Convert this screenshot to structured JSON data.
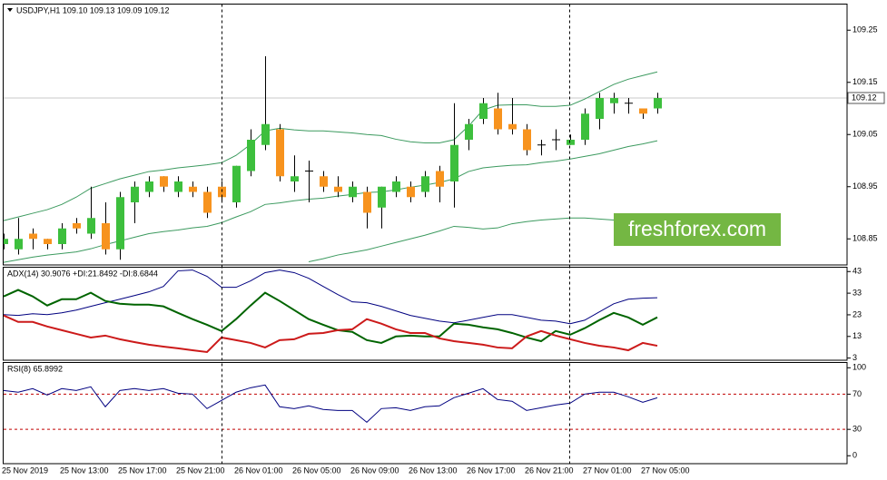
{
  "chart_data": [
    {
      "type": "candlestick",
      "title": "USDJPY,H1  109.10 109.13 109.09 109.12",
      "categories": [
        "25 Nov 2019",
        null,
        null,
        null,
        "25 Nov 13:00",
        null,
        null,
        null,
        "25 Nov 17:00",
        null,
        null,
        null,
        "25 Nov 21:00",
        null,
        null,
        null,
        "26 Nov 01:00",
        null,
        null,
        null,
        "26 Nov 05:00",
        null,
        null,
        null,
        "26 Nov 09:00",
        null,
        null,
        null,
        "26 Nov 13:00",
        null,
        null,
        null,
        "26 Nov 17:00",
        null,
        null,
        null,
        "26 Nov 21:00",
        null,
        null,
        null,
        "27 Nov 01:00",
        null,
        null,
        null,
        "27 Nov 05:00",
        null
      ],
      "open": [
        108.84,
        108.83,
        108.86,
        108.85,
        108.84,
        108.88,
        108.86,
        108.88,
        108.83,
        108.92,
        108.94,
        108.97,
        108.94,
        108.95,
        108.94,
        108.95,
        108.92,
        108.98,
        109.03,
        109.06,
        108.96,
        108.98,
        108.97,
        108.95,
        108.93,
        108.94,
        108.91,
        108.94,
        108.95,
        108.94,
        108.98,
        108.96,
        109.04,
        109.08,
        109.1,
        109.07,
        109.06,
        109.03,
        109.04,
        109.03,
        109.04,
        109.08,
        109.11,
        109.11,
        109.1,
        109.1
      ],
      "high": [
        108.86,
        108.89,
        108.87,
        108.85,
        108.88,
        108.89,
        108.95,
        108.92,
        108.94,
        108.96,
        108.97,
        108.97,
        108.97,
        108.96,
        108.95,
        108.96,
        108.99,
        109.06,
        109.2,
        109.07,
        109.01,
        109.0,
        108.98,
        108.97,
        108.96,
        108.95,
        108.95,
        108.97,
        108.96,
        108.98,
        108.99,
        109.11,
        109.08,
        109.12,
        109.13,
        109.12,
        109.07,
        109.04,
        109.06,
        109.05,
        109.1,
        109.13,
        109.13,
        109.12,
        109.1,
        109.13
      ],
      "low": [
        108.83,
        108.82,
        108.83,
        108.83,
        108.83,
        108.86,
        108.85,
        108.82,
        108.81,
        108.88,
        108.93,
        108.94,
        108.93,
        108.93,
        108.89,
        108.92,
        108.91,
        108.97,
        109.02,
        108.96,
        108.94,
        108.92,
        108.94,
        108.93,
        108.92,
        108.87,
        108.87,
        108.93,
        108.92,
        108.93,
        108.92,
        108.91,
        109.02,
        109.07,
        109.05,
        109.05,
        109.01,
        109.01,
        109.02,
        109.03,
        109.03,
        109.06,
        109.09,
        109.09,
        109.08,
        109.09
      ],
      "close": [
        108.85,
        108.85,
        108.85,
        108.84,
        108.87,
        108.87,
        108.89,
        108.83,
        108.93,
        108.95,
        108.96,
        108.95,
        108.96,
        108.94,
        108.9,
        108.93,
        108.99,
        109.04,
        109.07,
        108.97,
        108.97,
        108.98,
        108.95,
        108.94,
        108.95,
        108.9,
        108.95,
        108.96,
        108.93,
        108.97,
        108.95,
        109.03,
        109.07,
        109.11,
        109.06,
        109.06,
        109.02,
        109.03,
        109.04,
        109.04,
        109.09,
        109.12,
        109.12,
        109.11,
        109.09,
        109.12
      ],
      "up_color": "#3dbf3d",
      "down_color": "#f7931e",
      "doji_color": "#000000",
      "overlays": [
        {
          "color": "#3c9a5f",
          "values": [
            108.885,
            108.892,
            108.899,
            108.906,
            108.916,
            108.93,
            108.947,
            108.956,
            108.965,
            108.972,
            108.979,
            108.982,
            108.986,
            108.989,
            108.992,
            108.996,
            109.01,
            109.031,
            109.057,
            109.062,
            109.059,
            109.057,
            109.057,
            109.055,
            109.053,
            109.05,
            109.048,
            109.041,
            109.036,
            109.034,
            109.034,
            109.04,
            109.066,
            109.097,
            109.106,
            109.107,
            109.107,
            109.104,
            109.104,
            109.106,
            109.118,
            109.132,
            109.146,
            109.156,
            109.163,
            109.17
          ]
        },
        {
          "color": "#3c9a5f",
          "values": [
            108.805,
            108.81,
            108.815,
            108.819,
            108.822,
            108.825,
            108.831,
            108.839,
            108.846,
            108.853,
            108.86,
            108.864,
            108.867,
            108.871,
            108.874,
            108.881,
            108.892,
            108.902,
            108.916,
            108.919,
            108.923,
            108.926,
            108.928,
            108.932,
            108.935,
            108.939,
            108.94,
            108.944,
            108.949,
            108.953,
            108.958,
            108.965,
            108.979,
            108.986,
            108.989,
            108.991,
            108.992,
            108.996,
            108.999,
            109.003,
            109.008,
            109.013,
            109.02,
            109.027,
            109.032,
            109.038
          ]
        },
        {
          "color": "#3c9a5f",
          "values": [
            null,
            null,
            null,
            null,
            null,
            null,
            null,
            null,
            null,
            null,
            null,
            null,
            null,
            null,
            null,
            null,
            null,
            null,
            null,
            null,
            null,
            108.806,
            108.812,
            108.819,
            108.824,
            108.829,
            108.836,
            108.843,
            108.85,
            108.857,
            108.865,
            108.874,
            108.872,
            108.869,
            108.871,
            108.879,
            108.883,
            108.886,
            108.888,
            108.89,
            108.89,
            108.888,
            108.886,
            108.885,
            108.888,
            108.892
          ]
        }
      ],
      "last_price": 109.12,
      "watermark": "freshforex.com",
      "ylim": [
        108.8,
        109.3
      ],
      "yticks": [
        109.25,
        109.15,
        109.05,
        108.95,
        108.85
      ]
    },
    {
      "type": "line",
      "title": "ADX(14) 30.9076 +DI:21.8492 -DI:8.6844",
      "series": [
        {
          "color": "#000080",
          "line_width": 1,
          "values": [
            23.1,
            22.7,
            23.5,
            23.1,
            23.9,
            25.2,
            26.9,
            28.6,
            30.2,
            31.9,
            33.6,
            36.1,
            43.3,
            43.7,
            40.8,
            35.7,
            35.7,
            38.7,
            42.5,
            43.7,
            42.5,
            39.9,
            36.1,
            32.4,
            29.0,
            28.6,
            26.9,
            24.8,
            22.7,
            21.4,
            20.1,
            19.3,
            20.5,
            21.8,
            23.1,
            23.1,
            21.8,
            20.5,
            20.1,
            18.9,
            20.5,
            24.3,
            28.1,
            30.2,
            30.7,
            30.9076
          ]
        },
        {
          "color": "#006400",
          "line_width": 2,
          "values": [
            31.5,
            34.5,
            31.5,
            27.3,
            30.2,
            30.2,
            33.2,
            29.4,
            28.1,
            27.7,
            27.7,
            26.9,
            23.9,
            21.0,
            18.4,
            15.5,
            21.0,
            27.3,
            33.2,
            29.4,
            25.2,
            21.0,
            18.4,
            15.9,
            15.1,
            11.3,
            10.0,
            13.0,
            13.4,
            13.0,
            13.0,
            18.9,
            18.4,
            17.2,
            16.3,
            14.6,
            12.5,
            10.8,
            15.5,
            13.8,
            16.8,
            20.5,
            23.9,
            21.8,
            18.4,
            21.8492
          ]
        },
        {
          "color": "#cc1a1a",
          "line_width": 2,
          "values": [
            22.7,
            19.7,
            19.7,
            17.6,
            15.9,
            14.2,
            12.5,
            13.4,
            11.7,
            10.4,
            9.2,
            8.3,
            7.5,
            6.6,
            5.8,
            12.5,
            11.3,
            10.0,
            7.9,
            11.3,
            11.7,
            14.2,
            14.6,
            15.9,
            16.3,
            21.0,
            18.9,
            16.3,
            14.6,
            14.6,
            12.1,
            10.8,
            10.0,
            9.2,
            7.9,
            7.5,
            13.0,
            15.5,
            13.4,
            11.7,
            10.0,
            8.7,
            7.9,
            6.6,
            10.0,
            8.6844
          ]
        }
      ],
      "ylim": [
        2,
        45
      ],
      "yticks": [
        43,
        33,
        23,
        13,
        3
      ]
    },
    {
      "type": "line",
      "title": "RSI(8) 65.8992",
      "series": [
        {
          "color": "#000080",
          "line_width": 1,
          "values": [
            74.2,
            72.2,
            76.3,
            69.1,
            76.3,
            74.2,
            78.4,
            55.7,
            74.2,
            76.3,
            74.2,
            76.3,
            71.1,
            70.1,
            53.6,
            62.9,
            72.2,
            77.3,
            80.4,
            55.7,
            53.6,
            56.7,
            52.6,
            51.5,
            51.5,
            38.1,
            53.6,
            54.6,
            51.5,
            55.7,
            56.7,
            66.0,
            71.1,
            76.3,
            63.9,
            61.9,
            51.5,
            54.6,
            57.7,
            59.8,
            70.1,
            72.2,
            72.2,
            67.0,
            60.8,
            65.8992
          ]
        }
      ],
      "levels": [
        70,
        30
      ],
      "level_color": "#c00000",
      "ylim": [
        -9,
        106
      ],
      "yticks": [
        100,
        70,
        30,
        0
      ]
    }
  ]
}
